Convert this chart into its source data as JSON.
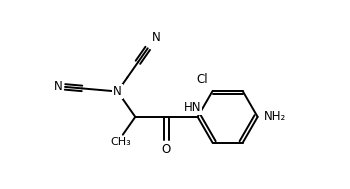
{
  "bg_color": "#ffffff",
  "line_color": "#000000",
  "line_width": 1.4,
  "font_size": 8.5,
  "figsize": [
    3.5,
    1.89
  ],
  "dpi": 100,
  "xlim": [
    0,
    7.0
  ],
  "ylim": [
    0,
    3.78
  ]
}
